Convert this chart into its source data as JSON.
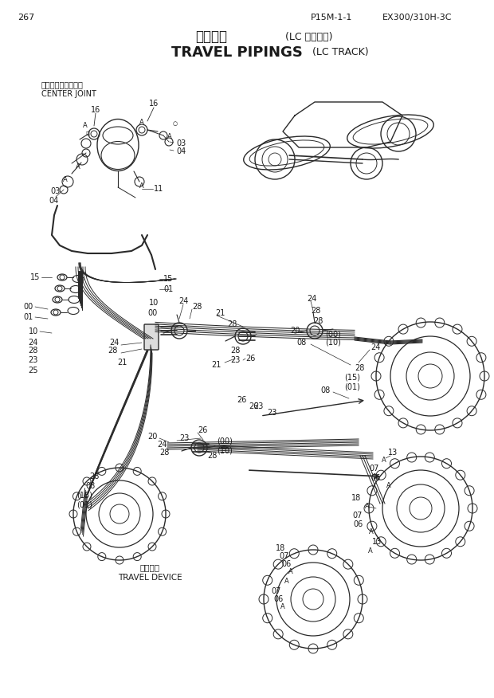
{
  "page_number": "267",
  "top_right_ref": "P15M-1-1",
  "model": "EX300/310H-3C",
  "title_japanese": "走行配管（LC トラック）",
  "title_english_main": "TRAVEL PIPINGS",
  "title_english_sub": "(LC TRACK)",
  "bg_color": "#f5f5f0",
  "text_color": "#1a1a1a",
  "line_color": "#2a2a2a",
  "center_joint_label_jp": "センタージョイント",
  "center_joint_label_en": "CENTER JOINT",
  "travel_device_label_jp": "走行装置",
  "travel_device_label_en": "TRAVEL DEVICE"
}
